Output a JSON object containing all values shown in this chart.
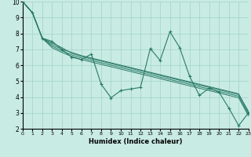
{
  "xlabel": "Humidex (Indice chaleur)",
  "xlim": [
    0,
    23
  ],
  "ylim": [
    2,
    10
  ],
  "xticks": [
    0,
    1,
    2,
    3,
    4,
    5,
    6,
    7,
    8,
    9,
    10,
    11,
    12,
    13,
    14,
    15,
    16,
    17,
    18,
    19,
    20,
    21,
    22,
    23
  ],
  "yticks": [
    2,
    3,
    4,
    5,
    6,
    7,
    8,
    9,
    10
  ],
  "bg_color": "#c8ebe3",
  "grid_color": "#a0d4c8",
  "line_color": "#2a7a68",
  "main_y": [
    10.0,
    9.3,
    7.7,
    7.5,
    7.0,
    6.5,
    6.35,
    6.7,
    4.8,
    3.95,
    4.4,
    4.5,
    4.6,
    7.05,
    6.3,
    8.1,
    7.1,
    5.3,
    4.1,
    4.55,
    4.3,
    3.3,
    2.2,
    3.0
  ],
  "trend1_y": [
    10.0,
    9.3,
    7.7,
    7.3,
    7.0,
    6.8,
    6.6,
    6.45,
    6.3,
    6.15,
    6.0,
    5.85,
    5.7,
    5.55,
    5.4,
    5.25,
    5.1,
    4.95,
    4.8,
    4.65,
    4.5,
    4.35,
    4.2,
    3.0
  ],
  "trend2_y": [
    10.0,
    9.3,
    7.7,
    7.2,
    6.9,
    6.65,
    6.45,
    6.3,
    6.15,
    6.0,
    5.85,
    5.7,
    5.55,
    5.4,
    5.25,
    5.1,
    4.95,
    4.8,
    4.65,
    4.5,
    4.35,
    4.2,
    4.05,
    2.9
  ],
  "trend3_y": [
    10.0,
    9.3,
    7.7,
    7.1,
    6.8,
    6.55,
    6.35,
    6.2,
    6.05,
    5.9,
    5.75,
    5.6,
    5.45,
    5.3,
    5.15,
    5.0,
    4.85,
    4.7,
    4.55,
    4.4,
    4.25,
    4.1,
    3.95,
    2.8
  ],
  "trend4_y": [
    10.0,
    9.3,
    7.7,
    7.4,
    7.1,
    6.75,
    6.55,
    6.4,
    6.25,
    6.1,
    5.95,
    5.8,
    5.65,
    5.5,
    5.35,
    5.2,
    5.05,
    4.9,
    4.75,
    4.6,
    4.45,
    4.3,
    4.15,
    3.1
  ]
}
